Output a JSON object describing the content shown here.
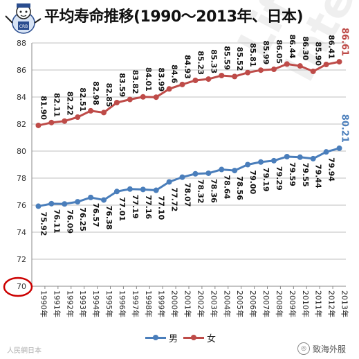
{
  "title": "平均寿命推移(1990～2013年、日本)",
  "colors": {
    "male": "#4a7ebb",
    "female": "#be4b48",
    "highlight": "#cc0000"
  },
  "chart_data": {
    "type": "line",
    "categories": [
      "1990年",
      "1991年",
      "1992年",
      "1993年",
      "1994年",
      "1995年",
      "1996年",
      "1997年",
      "1998年",
      "1999年",
      "2000年",
      "2001年",
      "2002年",
      "2003年",
      "2004年",
      "2005年",
      "2006年",
      "2007年",
      "2008年",
      "2009年",
      "2010年",
      "2011年",
      "2012年",
      "2013年"
    ],
    "series": [
      {
        "name": "男",
        "values": [
          75.92,
          76.11,
          76.09,
          76.25,
          76.57,
          76.38,
          77.01,
          77.19,
          77.16,
          77.1,
          77.72,
          78.07,
          78.32,
          78.36,
          78.64,
          78.56,
          79.0,
          79.19,
          79.29,
          79.59,
          79.55,
          79.44,
          79.94,
          80.21
        ]
      },
      {
        "name": "女",
        "values": [
          81.9,
          82.11,
          82.22,
          82.51,
          82.98,
          82.85,
          83.59,
          83.82,
          84.01,
          83.99,
          84.6,
          84.93,
          85.23,
          85.33,
          85.59,
          85.52,
          85.81,
          85.99,
          86.05,
          86.44,
          86.3,
          85.9,
          86.41,
          86.61
        ]
      }
    ],
    "labels": {
      "male": [
        "75.92",
        "76.11",
        "76.09",
        "76.25",
        "76.57",
        "76.38",
        "77.01",
        "77.19",
        "77.16",
        "77.10",
        "77.72",
        "78.07",
        "78.32",
        "78.36",
        "78.64",
        "78.56",
        "79.00",
        "79.19",
        "79.29",
        "79.59",
        "79.55",
        "79.44",
        "79.94",
        "80.21"
      ],
      "female": [
        "81.90",
        "82.11",
        "82.22",
        "82.51",
        "82.98",
        "82.85",
        "83.59",
        "83.82",
        "84.01",
        "83.99",
        "84.6",
        "84.93",
        "85.23",
        "85.33",
        "85.59",
        "85.52",
        "85.81",
        "85.99",
        "86.05",
        "86.44",
        "86.30",
        "85.90",
        "86.41",
        "86.61"
      ]
    },
    "ylim": [
      70,
      88
    ],
    "yticks": [
      "70",
      "72",
      "74",
      "76",
      "78",
      "80",
      "82",
      "84",
      "86",
      "88"
    ],
    "grid": true,
    "legend": "bottom",
    "annotation": "70"
  },
  "legend": {
    "male": "男",
    "female": "女"
  },
  "watermarks": {
    "bottom_left": "人民網日本",
    "bottom_right": "致海外服",
    "diagonal": "Lifeinn International"
  }
}
